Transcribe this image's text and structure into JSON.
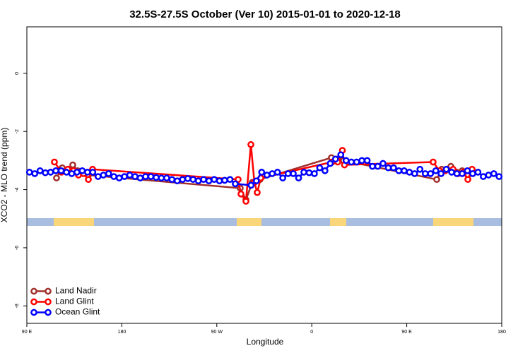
{
  "chart_data": {
    "type": "line",
    "title": "32.5S-27.5S October (Ver 10)   2015-01-01 to 2020-12-18",
    "x_label": "Longitude",
    "y_label": "XCO2 - MLO trend (ppm)",
    "xlim": [
      90,
      540
    ],
    "ylim": [
      -8.6,
      1.6
    ],
    "xticks": [
      {
        "value": 90,
        "label": "90 E"
      },
      180,
      {
        "value": 270,
        "label": "90 W"
      },
      {
        "value": 360,
        "label": "0"
      },
      {
        "value": 450,
        "label": "90 E"
      },
      {
        "value": 540,
        "label": "180"
      }
    ],
    "yticks": [
      -8,
      -6,
      -4,
      -2,
      0
    ],
    "legend": "bottomleft",
    "series": [
      {
        "name": "Land Nadir",
        "color": "#a0302c",
        "x": [
          118.1,
          123.5,
          129.5,
          133.5,
          138.2,
          143.6,
          148.3,
          292.2,
          297.6,
          303.6,
          311.0,
          378.6,
          384.6,
          390.0,
          478.4,
          483.1,
          491.8,
          497.2,
          502.5,
          507.9
        ],
        "values": [
          -3.6,
          -3.25,
          -3.3,
          -3.15,
          -3.35,
          -3.4,
          -3.5,
          -3.95,
          -4.35,
          -3.75,
          -3.65,
          -2.9,
          -2.95,
          -3.0,
          -3.65,
          -3.3,
          -3.2,
          -3.4,
          -3.35,
          -3.5
        ]
      },
      {
        "name": "Land Glint",
        "color": "#ff0000",
        "x": [
          116.1,
          122.8,
          128.8,
          134.2,
          138.9,
          143.6,
          148.3,
          152.3,
          290.2,
          292.9,
          297.6,
          302.3,
          305.6,
          308.3,
          311.7,
          379.3,
          384.6,
          389.0,
          391.0,
          475.0,
          481.0,
          486.5,
          493.9,
          498.5,
          503.9,
          507.9,
          511.9
        ],
        "values": [
          -3.05,
          -3.4,
          -3.3,
          -3.35,
          -3.5,
          -3.45,
          -3.65,
          -3.3,
          -3.65,
          -4.15,
          -4.4,
          -2.45,
          -3.75,
          -4.1,
          -3.6,
          -3.05,
          -3.05,
          -2.65,
          -3.15,
          -3.05,
          -3.35,
          -3.35,
          -3.3,
          -3.45,
          -3.4,
          -3.65,
          -3.3
        ]
      },
      {
        "name": "Ocean Glint",
        "color": "#0000ff",
        "x": [
          92.5,
          97.5,
          102.5,
          107.5,
          112.5,
          117.5,
          122.5,
          127.5,
          132.5,
          137.5,
          142.5,
          147.5,
          152.5,
          157.5,
          162.5,
          167.5,
          172.5,
          177.5,
          182.5,
          187.5,
          192.5,
          197.5,
          202.5,
          207.5,
          212.5,
          217.5,
          222.5,
          227.5,
          232.5,
          237.5,
          242.5,
          247.5,
          252.5,
          257.5,
          262.5,
          267.5,
          272.5,
          277.5,
          282.5,
          287.5,
          302.5,
          307.5,
          312.5,
          317.5,
          322.5,
          327.5,
          332.5,
          337.5,
          342.5,
          347.5,
          352.5,
          357.5,
          362.5,
          367.5,
          372.5,
          377.5,
          382.5,
          387.5,
          392.5,
          397.5,
          402.5,
          407.5,
          412.5,
          417.5,
          422.5,
          427.5,
          432.5,
          437.5,
          442.5,
          447.5,
          452.5,
          457.5,
          462.5,
          467.5,
          472.5,
          477.5,
          482.5,
          487.5,
          492.5,
          497.5,
          502.5,
          507.5,
          512.5,
          517.5,
          522.5,
          527.5,
          532.5,
          537.5
        ],
        "values": [
          -3.4,
          -3.45,
          -3.35,
          -3.42,
          -3.4,
          -3.35,
          -3.35,
          -3.4,
          -3.45,
          -3.4,
          -3.35,
          -3.4,
          -3.4,
          -3.55,
          -3.5,
          -3.45,
          -3.55,
          -3.6,
          -3.55,
          -3.5,
          -3.55,
          -3.6,
          -3.55,
          -3.55,
          -3.58,
          -3.6,
          -3.6,
          -3.65,
          -3.7,
          -3.65,
          -3.62,
          -3.65,
          -3.7,
          -3.65,
          -3.7,
          -3.65,
          -3.7,
          -3.68,
          -3.65,
          -3.8,
          -3.85,
          -3.7,
          -3.4,
          -3.5,
          -3.45,
          -3.4,
          -3.6,
          -3.45,
          -3.45,
          -3.6,
          -3.4,
          -3.42,
          -3.45,
          -3.25,
          -3.35,
          -3.1,
          -2.95,
          -2.8,
          -3.0,
          -3.05,
          -3.05,
          -3.0,
          -3.0,
          -3.2,
          -3.2,
          -3.1,
          -3.25,
          -3.25,
          -3.35,
          -3.35,
          -3.4,
          -3.45,
          -3.3,
          -3.45,
          -3.45,
          -3.35,
          -3.45,
          -3.3,
          -3.4,
          -3.45,
          -3.45,
          -3.35,
          -3.45,
          -3.4,
          -3.55,
          -3.5,
          -3.45,
          -3.55
        ]
      }
    ]
  }
}
